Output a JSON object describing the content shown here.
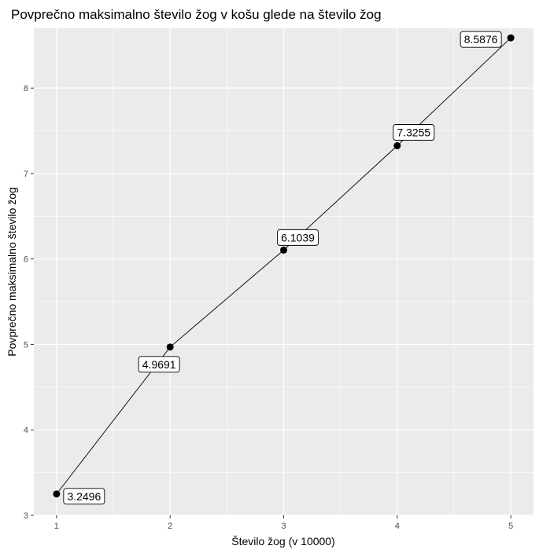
{
  "chart_data": {
    "type": "line",
    "title": "Povprečno maksimalno število žog v košu glede na število žog",
    "xlabel": "Število žog (v 10000)",
    "ylabel": "Povprečno maksimalno število žog",
    "x": [
      1,
      2,
      3,
      4,
      5
    ],
    "values": [
      3.2496,
      4.9691,
      6.1039,
      7.3255,
      8.5876
    ],
    "labels": [
      "3.2496",
      "4.9691",
      "6.1039",
      "7.3255",
      "8.5876"
    ],
    "xticks": [
      "1",
      "2",
      "3",
      "4",
      "5"
    ],
    "yticks": [
      "3",
      "4",
      "5",
      "6",
      "7",
      "8"
    ],
    "xlim": [
      0.8,
      5.2
    ],
    "ylim": [
      3.0,
      8.7
    ],
    "grid": true,
    "legend": "none",
    "colors": {
      "panel_background": "#ebebeb",
      "grid": "#ffffff",
      "line": "#000000",
      "point": "#000000",
      "label_fill": "#ffffff"
    }
  }
}
